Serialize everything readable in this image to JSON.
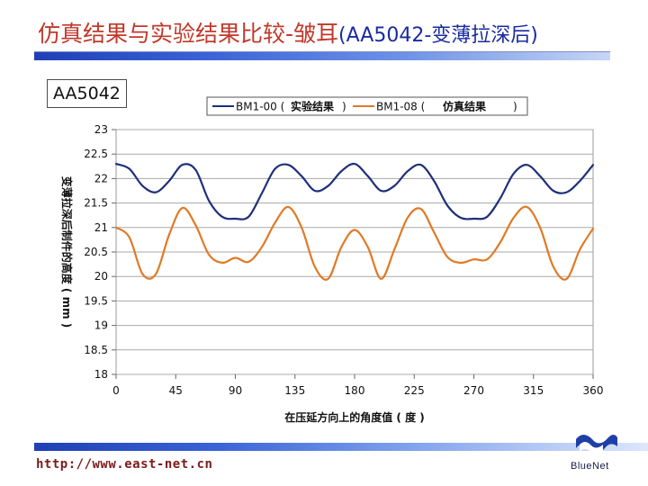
{
  "slide": {
    "title_main": "仿真结果与实验结果比较-皱耳",
    "title_sub": "(AA5042-变薄拉深后)",
    "alloy_label": "AA5042",
    "footer_url": "http://www.east-net.cn",
    "logo_text": "BlueNet"
  },
  "colors": {
    "title_red": "#c0392b",
    "title_blue": "#1a2aa0",
    "series_exp": "#1f2f7a",
    "series_sim": "#e07a24"
  },
  "chart_data": {
    "type": "line",
    "xlabel": "在压延方向上的角度值 ( 度 )",
    "ylabel": "变薄拉深后制件的高度 ( mm )",
    "xlim": [
      0,
      360
    ],
    "ylim": [
      18,
      23
    ],
    "x_ticks": [
      0,
      45,
      90,
      135,
      180,
      225,
      270,
      315,
      360
    ],
    "x_tick_labels": [
      "0",
      "45",
      "90",
      "135",
      "180",
      "225",
      "270",
      "315",
      "360"
    ],
    "y_ticks": [
      18,
      18.5,
      19,
      19.5,
      20,
      20.5,
      21,
      21.5,
      22,
      22.5,
      23
    ],
    "y_tick_labels": [
      "18",
      "18.5",
      "19",
      "19.5",
      "20",
      "20.5",
      "21",
      "21.5",
      "22",
      "22.5",
      "23"
    ],
    "grid": "horizontal",
    "legend": "top",
    "legend_entries": [
      {
        "prefix": "BM1-00 (",
        "name": "实验结果",
        "suffix": ")"
      },
      {
        "prefix": "BM1-08 (",
        "name": "仿真结果",
        "suffix": ")"
      }
    ],
    "x": [
      0,
      10,
      20,
      30,
      40,
      50,
      60,
      70,
      80,
      90,
      100,
      110,
      120,
      130,
      140,
      150,
      160,
      170,
      180,
      190,
      200,
      210,
      220,
      230,
      240,
      250,
      260,
      270,
      280,
      290,
      300,
      310,
      320,
      330,
      340,
      350,
      360
    ],
    "series": [
      {
        "name": "实验结果",
        "color": "#1f2f7a",
        "values": [
          22.3,
          22.2,
          21.85,
          21.72,
          21.95,
          22.28,
          22.18,
          21.55,
          21.22,
          21.18,
          21.22,
          21.7,
          22.2,
          22.28,
          22.05,
          21.75,
          21.85,
          22.15,
          22.3,
          22.05,
          21.75,
          21.85,
          22.15,
          22.28,
          21.95,
          21.45,
          21.2,
          21.18,
          21.22,
          21.6,
          22.1,
          22.28,
          22.05,
          21.75,
          21.72,
          21.95,
          22.28
        ]
      },
      {
        "name": "仿真结果",
        "color": "#e07a24",
        "values": [
          21.0,
          20.8,
          20.05,
          20.05,
          20.85,
          21.4,
          21.05,
          20.45,
          20.28,
          20.38,
          20.3,
          20.6,
          21.1,
          21.42,
          21.0,
          20.2,
          19.95,
          20.6,
          20.95,
          20.6,
          19.95,
          20.55,
          21.2,
          21.38,
          20.9,
          20.4,
          20.28,
          20.35,
          20.35,
          20.7,
          21.2,
          21.42,
          21.0,
          20.2,
          19.95,
          20.55,
          20.98
        ]
      }
    ]
  }
}
